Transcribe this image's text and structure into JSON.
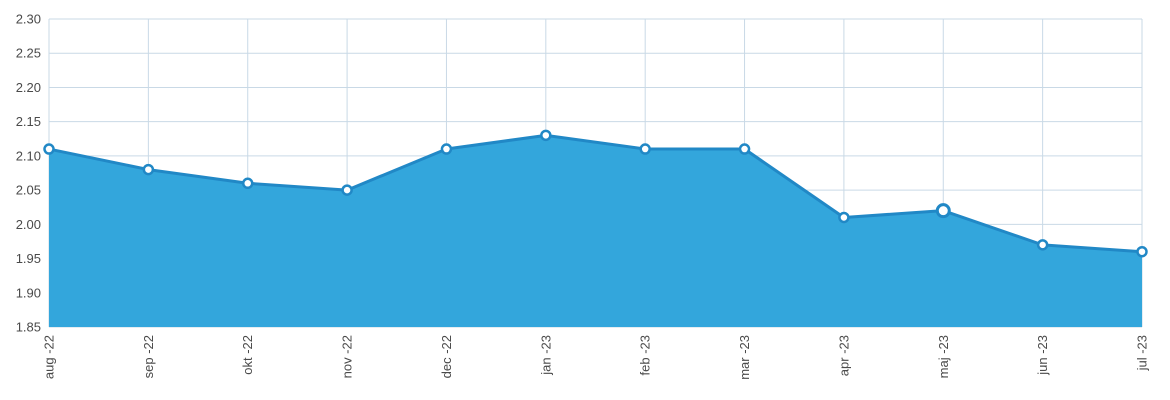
{
  "chart_data": {
    "type": "area",
    "title": "",
    "xlabel": "",
    "ylabel": "",
    "categories": [
      "aug -22",
      "sep -22",
      "okt -22",
      "nov -22",
      "dec -22",
      "jan -23",
      "feb -23",
      "mar -23",
      "apr -23",
      "maj -23",
      "jun -23",
      "jul -23"
    ],
    "values": [
      2.11,
      2.08,
      2.06,
      2.05,
      2.11,
      2.13,
      2.11,
      2.11,
      2.01,
      2.02,
      1.97,
      1.96
    ],
    "ylim": [
      1.85,
      2.3
    ],
    "yticks": [
      "1.85",
      "1.90",
      "1.95",
      "2.00",
      "2.05",
      "2.10",
      "2.15",
      "2.20",
      "2.25",
      "2.30"
    ],
    "highlighted_index": 9,
    "grid": true,
    "legend": "none",
    "colors": {
      "fill": "#33a6dc",
      "line": "#2188c6",
      "marker_fill": "#ffffff",
      "marker_stroke": "#2188c6",
      "grid": "#c9d9e6",
      "text": "#4a4a4a"
    }
  }
}
